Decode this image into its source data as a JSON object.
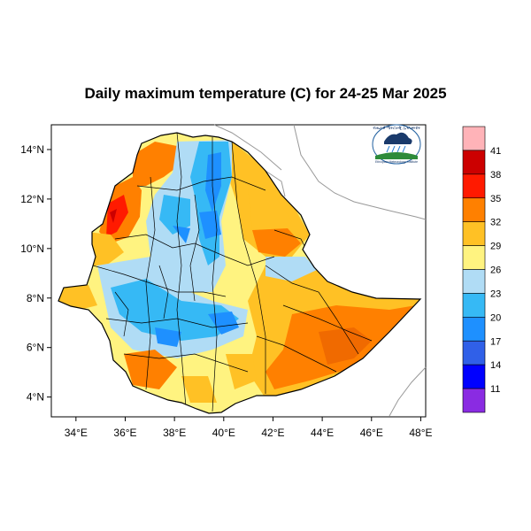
{
  "title": "Daily maximum temperature (C) for 24-25 Mar 2025",
  "map": {
    "lon_ticks": [
      "34°E",
      "36°E",
      "38°E",
      "40°E",
      "42°E",
      "44°E",
      "46°E",
      "48°E"
    ],
    "lat_ticks": [
      "14°N",
      "12°N",
      "10°N",
      "8°N",
      "6°N",
      "4°N"
    ],
    "lon_range": [
      33,
      48.2
    ],
    "lat_range": [
      3.2,
      15
    ]
  },
  "colorbar": {
    "labels": [
      "41",
      "38",
      "35",
      "32",
      "29",
      "26",
      "23",
      "20",
      "17",
      "14",
      "11"
    ],
    "colors": [
      "#ffb3b8",
      "#cc0000",
      "#ff1a00",
      "#ff8000",
      "#ffc125",
      "#fff380",
      "#b0dcf5",
      "#36b9f5",
      "#1e90ff",
      "#3060e8",
      "#0000ff",
      "#8a2be2"
    ]
  },
  "logo": {
    "text_top": "ብሔራዊ ሜትሮሎጂ ኢንስቲትዩት",
    "text_bottom": "Ethiopian Meteorology Institute"
  }
}
